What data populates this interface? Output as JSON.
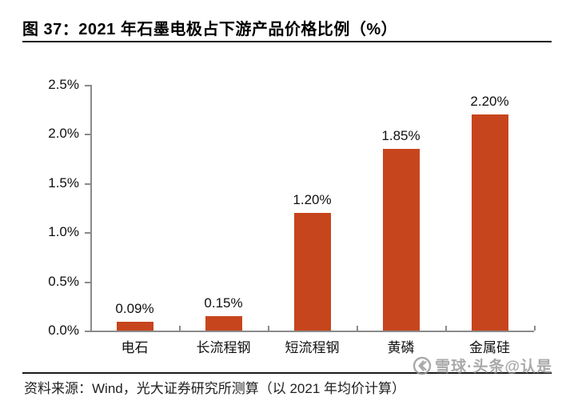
{
  "header": {
    "title": "图 37：2021 年石墨电极占下游产品价格比例（%）"
  },
  "chart_data": {
    "type": "bar",
    "title": "2021 年石墨电极占下游产品价格比例（%）",
    "categories": [
      "电石",
      "长流程钢",
      "短流程钢",
      "黄磷",
      "金属硅"
    ],
    "values": [
      0.09,
      0.15,
      1.2,
      1.85,
      2.2
    ],
    "value_labels": [
      "0.09%",
      "0.15%",
      "1.20%",
      "1.85%",
      "2.20%"
    ],
    "xlabel": "",
    "ylabel": "",
    "ylim": [
      0,
      2.5
    ],
    "yticks": [
      "0.0%",
      "0.5%",
      "1.0%",
      "1.5%",
      "2.0%",
      "2.5%"
    ],
    "grid": false,
    "legend": null,
    "bar_color": "#C7451D",
    "axis_color": "#8a8a8a"
  },
  "footer": {
    "source": "资料来源：Wind，光大证券研究所测算（以 2021 年均价计算）"
  },
  "watermark": {
    "text": "雪球·头条@认是",
    "logo": "xueqiu-logo"
  }
}
